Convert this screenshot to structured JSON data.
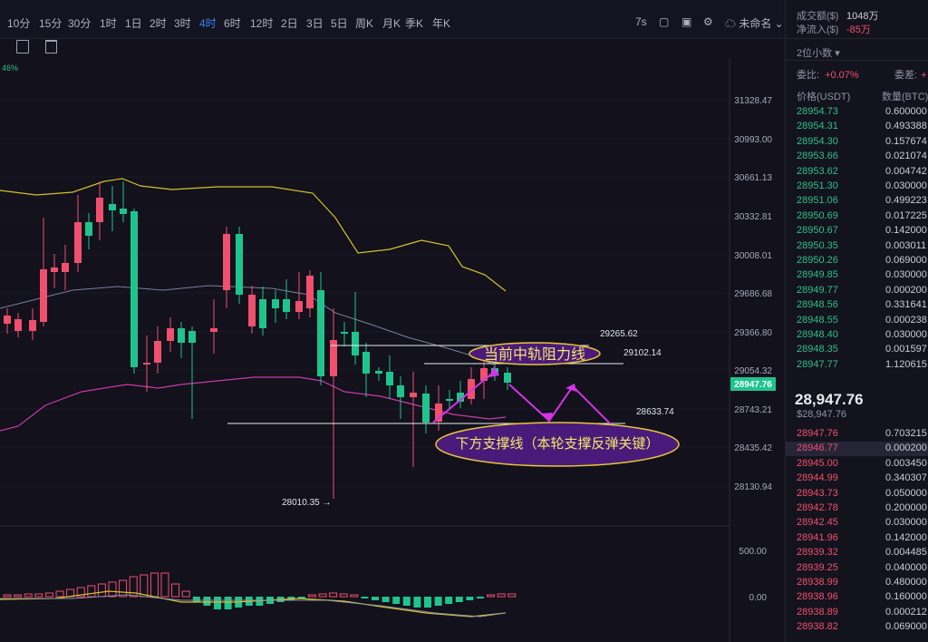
{
  "toolbar": {
    "timeframes": [
      "10分",
      "15分",
      "30分",
      "1时",
      "1日",
      "2时",
      "3时",
      "4时",
      "6时",
      "12时",
      "2日",
      "3日",
      "5日",
      "周K",
      "月K",
      "季K",
      "年K"
    ],
    "active_timeframe": "4时",
    "right_value": "7s",
    "layout_name": "未命名"
  },
  "chart": {
    "corner_percent": "46%",
    "price_axis": [
      "31328.47",
      "30993.00",
      "30661.13",
      "30332.81",
      "30008.01",
      "29686.68",
      "29366.80",
      "29054.32",
      "28743.21",
      "28435.42",
      "28130.94"
    ],
    "current_price_tag": "28947.76",
    "macd_axis": [
      "500.00",
      "0.00"
    ],
    "annotations": {
      "level_high": "29265.62",
      "level_mid": "29102.14",
      "level_low": "28633.74",
      "low_marker": "28010.35 →",
      "resistance_label": "当前中轨阻力线",
      "support_label": "下方支撑线（本轮支撑反弹关键）"
    },
    "colors": {
      "up": "#f0506e",
      "down": "#1fc48d",
      "boll_upper": "#d4c12a",
      "boll_lower": "#c93aa8",
      "boll_mid": "#7b7f9a",
      "arrow": "#d633e6"
    }
  },
  "right": {
    "stats": [
      {
        "label": "成交额($)",
        "value": "1048万"
      },
      {
        "label": "净流入($)",
        "value": "-85万"
      }
    ],
    "decimals": "2位小数",
    "weibi_label": "委比:",
    "weibi_value": "+0.07%",
    "weicha_label": "委差:",
    "weicha_value": "+",
    "price_header": "价格(USDT)",
    "qty_header": "数量(BTC)",
    "asks": [
      {
        "p": "28954.73",
        "q": "0.600000"
      },
      {
        "p": "28954.31",
        "q": "0.493388"
      },
      {
        "p": "28954.30",
        "q": "0.157674"
      },
      {
        "p": "28953.66",
        "q": "0.021074"
      },
      {
        "p": "28953.62",
        "q": "0.004742"
      },
      {
        "p": "28951.30",
        "q": "0.030000"
      },
      {
        "p": "28951.06",
        "q": "0.499223"
      },
      {
        "p": "28950.69",
        "q": "0.017225"
      },
      {
        "p": "28950.67",
        "q": "0.142000"
      },
      {
        "p": "28950.35",
        "q": "0.003011"
      },
      {
        "p": "28950.26",
        "q": "0.069000"
      },
      {
        "p": "28949.85",
        "q": "0.030000"
      },
      {
        "p": "28949.77",
        "q": "0.000200"
      },
      {
        "p": "28948.56",
        "q": "0.331641"
      },
      {
        "p": "28948.55",
        "q": "0.000238"
      },
      {
        "p": "28948.40",
        "q": "0.030000"
      },
      {
        "p": "28948.35",
        "q": "0.001597"
      },
      {
        "p": "28947.77",
        "q": "1.120615"
      }
    ],
    "last_price": "28,947.76",
    "last_price_usd": "$28,947.76",
    "bids": [
      {
        "p": "28947.76",
        "q": "0.703215"
      },
      {
        "p": "28946.77",
        "q": "0.000200"
      },
      {
        "p": "28945.00",
        "q": "0.003450"
      },
      {
        "p": "28944.99",
        "q": "0.340307"
      },
      {
        "p": "28943.73",
        "q": "0.050000"
      },
      {
        "p": "28942.78",
        "q": "0.200000"
      },
      {
        "p": "28942.45",
        "q": "0.030000"
      },
      {
        "p": "28941.96",
        "q": "0.142000"
      },
      {
        "p": "28939.32",
        "q": "0.004485"
      },
      {
        "p": "28939.25",
        "q": "0.040000"
      },
      {
        "p": "28938.99",
        "q": "0.480000"
      },
      {
        "p": "28938.96",
        "q": "0.160000"
      },
      {
        "p": "28938.89",
        "q": "0.000212"
      },
      {
        "p": "28938.82",
        "q": "0.069000"
      }
    ]
  }
}
